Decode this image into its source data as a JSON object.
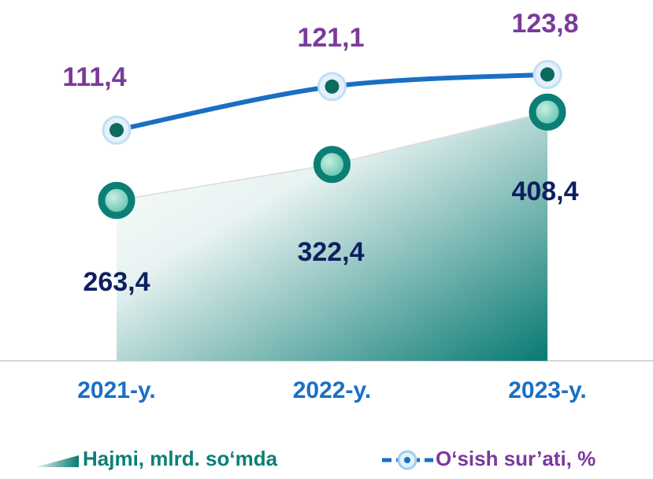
{
  "chart_data": {
    "type": "area",
    "categories": [
      "2021-y.",
      "2022-y.",
      "2023-y."
    ],
    "series": [
      {
        "name": "Hajmi, mlrd. so‘mda",
        "type": "area",
        "color": "#0b7f76",
        "values": [
          263.4,
          322.4,
          408.4
        ],
        "value_labels": [
          "263,4",
          "322,4",
          "408,4"
        ]
      },
      {
        "name": "O‘sish sur’ati, %",
        "type": "line",
        "axis": "y2",
        "color": "#1a6fc4",
        "values": [
          111.4,
          121.1,
          123.8
        ],
        "value_labels": [
          "111,4",
          "121,1",
          "123,8"
        ]
      }
    ],
    "ylim": [
      0,
      560
    ],
    "y2lim": [
      60,
      136
    ]
  }
}
